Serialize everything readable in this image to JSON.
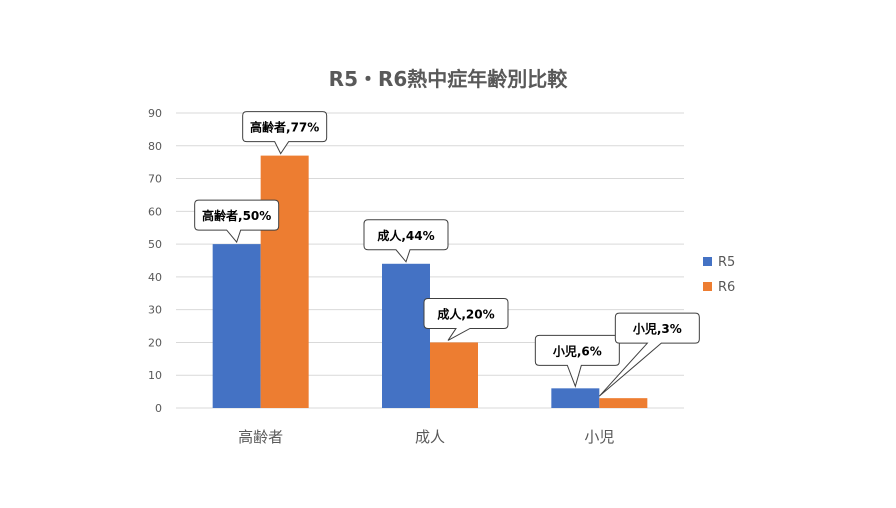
{
  "chart_data": {
    "type": "bar",
    "title": "R5・R6熱中症年齢別比較",
    "categories": [
      "高齢者",
      "成人",
      "小児"
    ],
    "series": [
      {
        "name": "R5",
        "values": [
          50,
          44,
          6
        ],
        "labels": [
          "高齢者,50%",
          "成人,44%",
          "小児,6%"
        ]
      },
      {
        "name": "R6",
        "values": [
          77,
          20,
          3
        ],
        "labels": [
          "高齢者,77%",
          "成人,20%",
          "小児,3%"
        ]
      }
    ],
    "ylim": [
      0,
      90
    ],
    "yticks": [
      "0",
      "10",
      "20",
      "30",
      "40",
      "50",
      "60",
      "70",
      "80",
      "90"
    ],
    "grid": true,
    "legend": "right",
    "colors": {
      "R5": "#4472C4",
      "R6": "#ED7D31",
      "grid": "#D9D9D9",
      "axis_text": "#595959"
    }
  }
}
